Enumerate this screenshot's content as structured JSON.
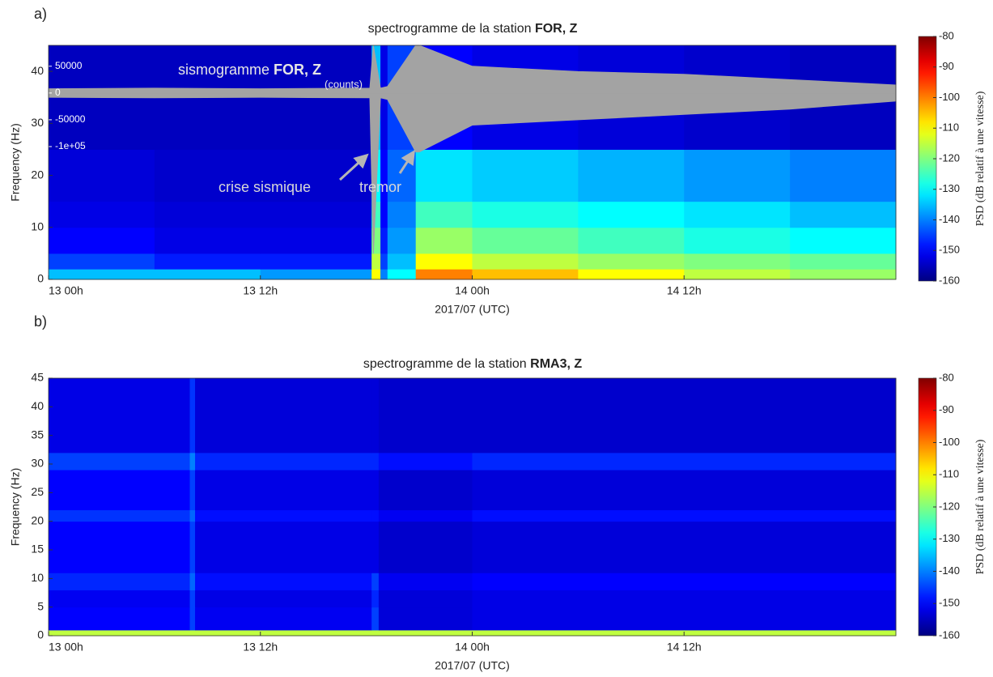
{
  "chart_data": [
    {
      "type": "heatmap",
      "panel": "a)",
      "title": {
        "text": "spectrogramme de la station",
        "station": "FOR, Z"
      },
      "xlabel": "2017/07 (UTC)",
      "ylabel": "Frequency (Hz)",
      "xlim": [
        0,
        48
      ],
      "xticks": [
        {
          "value": 0,
          "label": "13 00h"
        },
        {
          "value": 12,
          "label": "13 12h"
        },
        {
          "value": 24,
          "label": "14 00h"
        },
        {
          "value": 36,
          "label": "14 12h"
        }
      ],
      "ylim": [
        0,
        45
      ],
      "yticks": [
        0,
        10,
        20,
        30,
        40
      ],
      "x_edges": [
        0,
        6,
        12,
        18.3,
        18.8,
        19.2,
        20.8,
        24,
        30,
        36,
        42,
        48
      ],
      "y_edges": [
        0,
        2,
        5,
        10,
        15,
        25,
        45
      ],
      "z": [
        [
          -135,
          -135,
          -138,
          -110,
          -140,
          -130,
          -100,
          -105,
          -110,
          -115,
          -118
        ],
        [
          -145,
          -148,
          -148,
          -115,
          -145,
          -135,
          -110,
          -115,
          -118,
          -120,
          -122
        ],
        [
          -150,
          -152,
          -152,
          -120,
          -148,
          -138,
          -118,
          -122,
          -125,
          -128,
          -130
        ],
        [
          -152,
          -153,
          -153,
          -125,
          -150,
          -140,
          -125,
          -128,
          -130,
          -132,
          -135
        ],
        [
          -153,
          -154,
          -154,
          -130,
          -150,
          -142,
          -132,
          -134,
          -136,
          -138,
          -140
        ],
        [
          -155,
          -155,
          -155,
          -135,
          -152,
          -145,
          -150,
          -152,
          -153,
          -154,
          -155
        ]
      ],
      "colorbar": {
        "lim": [
          -160,
          -80
        ],
        "ticks": [
          -80,
          -90,
          -100,
          -110,
          -120,
          -130,
          -140,
          -150,
          -160
        ],
        "label": "PSD (dB relatif à une vitesse)"
      },
      "seismogram": {
        "label": "sismogramme",
        "station": "FOR, Z",
        "unit": "(counts)",
        "color": "#a3a3a3",
        "y2lim": [
          -348000,
          89000
        ],
        "y2ticks": [
          50000,
          0,
          -50000,
          {
            "value": -100000,
            "label": "-1e+05"
          }
        ],
        "x": [
          0,
          6,
          12,
          18.2,
          18.4,
          18.8,
          19.2,
          20.8,
          21,
          24,
          30,
          36,
          42,
          48
        ],
        "upper": [
          8000,
          9000,
          8000,
          9000,
          89000,
          9000,
          12000,
          89000,
          89000,
          50000,
          40000,
          35000,
          25000,
          15000
        ],
        "lower": [
          -8000,
          -9000,
          -8000,
          -9000,
          -300000,
          -9000,
          -12000,
          -110000,
          -110000,
          -60000,
          -50000,
          -40000,
          -30000,
          -15000
        ]
      },
      "annotations": [
        "crise sismique",
        "tremor"
      ]
    },
    {
      "type": "heatmap",
      "panel": "b)",
      "title": {
        "text": "spectrogramme de la station",
        "station": "RMA3, Z"
      },
      "xlabel": "2017/07 (UTC)",
      "ylabel": "Frequency (Hz)",
      "xlim": [
        0,
        48
      ],
      "xticks": [
        {
          "value": 0,
          "label": "13 00h"
        },
        {
          "value": 12,
          "label": "13 12h"
        },
        {
          "value": 24,
          "label": "14 00h"
        },
        {
          "value": 36,
          "label": "14 12h"
        }
      ],
      "ylim": [
        0,
        45
      ],
      "yticks": [
        0,
        5,
        10,
        15,
        20,
        25,
        30,
        35,
        40,
        45
      ],
      "x_edges": [
        0,
        8,
        8.3,
        18.3,
        18.7,
        24,
        48
      ],
      "y_edges": [
        0,
        1,
        5,
        8,
        11,
        20,
        22,
        29,
        32,
        45
      ],
      "z": [
        [
          -115,
          -115,
          -115,
          -115,
          -115,
          -115
        ],
        [
          -150,
          -145,
          -151,
          -145,
          -153,
          -152
        ],
        [
          -151,
          -145,
          -152,
          -147,
          -153,
          -152
        ],
        [
          -147,
          -142,
          -149,
          -145,
          -151,
          -150
        ],
        [
          -150,
          -145,
          -152,
          -152,
          -154,
          -153
        ],
        [
          -146,
          -142,
          -149,
          -149,
          -151,
          -149
        ],
        [
          -150,
          -145,
          -152,
          -152,
          -154,
          -153
        ],
        [
          -145,
          -140,
          -147,
          -147,
          -149,
          -147
        ],
        [
          -152,
          -146,
          -153,
          -153,
          -154,
          -154
        ]
      ],
      "colorbar": {
        "lim": [
          -160,
          -80
        ],
        "ticks": [
          -80,
          -90,
          -100,
          -110,
          -120,
          -130,
          -140,
          -150,
          -160
        ],
        "label": "PSD (dB relatif à une vitesse)"
      }
    }
  ]
}
